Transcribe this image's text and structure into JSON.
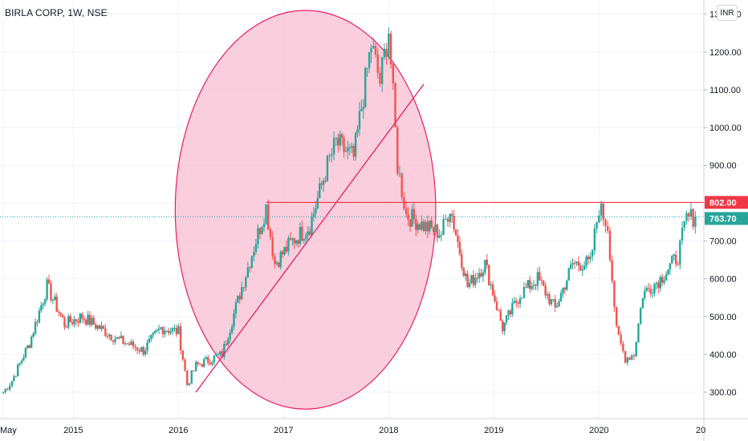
{
  "header": {
    "title": "BIRLA CORP, 1W, NSE",
    "currency": "INR"
  },
  "colors": {
    "up": "#26a69a",
    "down": "#ef5350",
    "annotation": "#e91e63",
    "ellipse_fill": "#f8bbd0",
    "resistance_label_bg": "#f23645",
    "last_price_bg": "#26a69a",
    "grid": "#f0f3fa",
    "axis_text": "#131722"
  },
  "chart_data": {
    "type": "candlestick",
    "timeframe": "1W",
    "ylim": [
      230,
      1310
    ],
    "y_ticks": [
      "300.00",
      "400.00",
      "500.00",
      "600.00",
      "700.00",
      "800.00",
      "900.00",
      "1000.00",
      "1100.00",
      "1200.00",
      "1300.00"
    ],
    "x_ticks": [
      "May",
      "2015",
      "2016",
      "2017",
      "2018",
      "2019",
      "2020",
      "20"
    ],
    "keypoints": [
      [
        "2014-05",
        300
      ],
      [
        "2014-06",
        330
      ],
      [
        "2014-08",
        430
      ],
      [
        "2014-10",
        580
      ],
      [
        "2014-12",
        480
      ],
      [
        "2015-02",
        500
      ],
      [
        "2015-04",
        470
      ],
      [
        "2015-06",
        440
      ],
      [
        "2015-09",
        410
      ],
      [
        "2015-11",
        470
      ],
      [
        "2016-01",
        460
      ],
      [
        "2016-02",
        320
      ],
      [
        "2016-03",
        370
      ],
      [
        "2016-06",
        400
      ],
      [
        "2016-08",
        560
      ],
      [
        "2016-11",
        790
      ],
      [
        "2016-12",
        640
      ],
      [
        "2017-02",
        700
      ],
      [
        "2017-04",
        740
      ],
      [
        "2017-06",
        900
      ],
      [
        "2017-07",
        960
      ],
      [
        "2017-09",
        920
      ],
      [
        "2017-11",
        1220
      ],
      [
        "2017-12",
        1120
      ],
      [
        "2018-01",
        1260
      ],
      [
        "2018-02",
        900
      ],
      [
        "2018-03",
        770
      ],
      [
        "2018-05",
        740
      ],
      [
        "2018-07",
        720
      ],
      [
        "2018-08",
        790
      ],
      [
        "2018-10",
        580
      ],
      [
        "2018-12",
        640
      ],
      [
        "2019-02",
        470
      ],
      [
        "2019-04",
        560
      ],
      [
        "2019-06",
        600
      ],
      [
        "2019-08",
        520
      ],
      [
        "2019-10",
        640
      ],
      [
        "2019-12",
        640
      ],
      [
        "2020-01",
        790
      ],
      [
        "2020-02",
        740
      ],
      [
        "2020-03",
        460
      ],
      [
        "2020-04",
        390
      ],
      [
        "2020-05",
        400
      ],
      [
        "2020-06",
        560
      ],
      [
        "2020-08",
        600
      ],
      [
        "2020-10",
        660
      ],
      [
        "2020-11",
        760
      ],
      [
        "2020-12",
        764
      ]
    ],
    "annotations": {
      "resistance_level": 802.0,
      "resistance_label": "802.00",
      "last_price": 763.7,
      "last_price_label": "763.70",
      "trendline": {
        "from": [
          "2016-03",
          300
        ],
        "to": [
          "2018-05",
          1115
        ]
      },
      "highlight_ellipse": {
        "from": "2016-01",
        "to": "2018-06",
        "y_low": 255,
        "y_high": 1310
      }
    }
  }
}
